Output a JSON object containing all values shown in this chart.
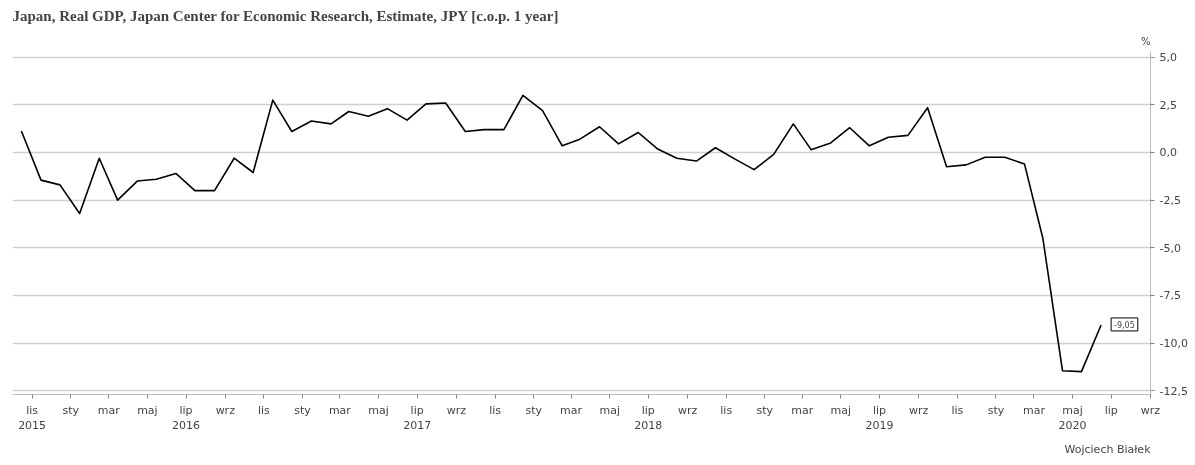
{
  "chart_data": {
    "type": "line",
    "title": "Japan, Real GDP, Japan Center for Economic Research, Estimate, JPY [c.o.p. 1 year]",
    "ylabel": "%",
    "x": [
      "2015-10-15",
      "2015-11-15",
      "2015-12-15",
      "2016-01-15",
      "2016-02-15",
      "2016-03-15",
      "2016-04-15",
      "2016-05-15",
      "2016-06-15",
      "2016-07-15",
      "2016-08-15",
      "2016-09-15",
      "2016-10-15",
      "2016-11-15",
      "2016-12-15",
      "2017-01-15",
      "2017-02-15",
      "2017-03-15",
      "2017-04-15",
      "2017-05-15",
      "2017-06-15",
      "2017-07-15",
      "2017-08-15",
      "2017-09-15",
      "2017-10-15",
      "2017-11-15",
      "2017-12-15",
      "2018-01-15",
      "2018-02-15",
      "2018-03-15",
      "2018-04-15",
      "2018-05-15",
      "2018-06-15",
      "2018-07-15",
      "2018-08-15",
      "2018-09-15",
      "2018-10-15",
      "2018-11-15",
      "2018-12-15",
      "2019-01-15",
      "2019-02-15",
      "2019-03-15",
      "2019-04-15",
      "2019-05-15",
      "2019-06-15",
      "2019-07-15",
      "2019-08-15",
      "2019-09-15",
      "2019-10-15",
      "2019-11-15",
      "2019-12-15",
      "2020-01-15",
      "2020-02-15",
      "2020-03-15",
      "2020-04-15",
      "2020-05-15",
      "2020-06-15"
    ],
    "series": [
      {
        "color": "#000000",
        "values": [
          1.13,
          -1.45,
          -1.7,
          -3.2,
          -0.3,
          -2.5,
          -1.5,
          -1.4,
          -1.1,
          -2.0,
          -2.0,
          -0.3,
          -1.05,
          2.75,
          1.1,
          1.65,
          1.5,
          2.15,
          1.9,
          2.3,
          1.7,
          2.55,
          2.6,
          1.1,
          1.2,
          1.2,
          3.0,
          2.2,
          0.35,
          0.7,
          1.35,
          0.45,
          1.05,
          0.2,
          -0.3,
          -0.45,
          0.25,
          -0.35,
          -0.9,
          -0.1,
          1.5,
          0.15,
          0.5,
          1.3,
          0.35,
          0.8,
          0.9,
          2.35,
          -0.75,
          -0.65,
          -0.25,
          -0.25,
          -0.6,
          -4.5,
          -11.45,
          -11.5,
          -9.05
        ]
      }
    ],
    "ylim": [
      -12.7,
      5.3
    ],
    "yticks": [
      {
        "value": 5,
        "label": "5,0"
      },
      {
        "value": 2.5,
        "label": "2,5"
      },
      {
        "value": 0,
        "label": "0,0"
      },
      {
        "value": -2.5,
        "label": "-2,5"
      },
      {
        "value": -5,
        "label": "-5,0"
      },
      {
        "value": -7.5,
        "label": "-7,5"
      },
      {
        "value": -10,
        "label": "-10,0"
      },
      {
        "value": -12.5,
        "label": "-12,5"
      }
    ],
    "xlim": [
      "2015-10-01",
      "2020-09-01"
    ],
    "xticks": [
      {
        "value": "2015-11-01",
        "label": "lis\n2015"
      },
      {
        "value": "2016-01-01",
        "label": "sty"
      },
      {
        "value": "2016-03-01",
        "label": "mar"
      },
      {
        "value": "2016-05-01",
        "label": "maj"
      },
      {
        "value": "2016-07-01",
        "label": "lip\n2016"
      },
      {
        "value": "2016-09-01",
        "label": "wrz"
      },
      {
        "value": "2016-11-01",
        "label": "lis"
      },
      {
        "value": "2017-01-01",
        "label": "sty"
      },
      {
        "value": "2017-03-01",
        "label": "mar"
      },
      {
        "value": "2017-05-01",
        "label": "maj"
      },
      {
        "value": "2017-07-01",
        "label": "lip\n2017"
      },
      {
        "value": "2017-09-01",
        "label": "wrz"
      },
      {
        "value": "2017-11-01",
        "label": "lis"
      },
      {
        "value": "2018-01-01",
        "label": "sty"
      },
      {
        "value": "2018-03-01",
        "label": "mar"
      },
      {
        "value": "2018-05-01",
        "label": "maj"
      },
      {
        "value": "2018-07-01",
        "label": "lip\n2018"
      },
      {
        "value": "2018-09-01",
        "label": "wrz"
      },
      {
        "value": "2018-11-01",
        "label": "lis"
      },
      {
        "value": "2019-01-01",
        "label": "sty"
      },
      {
        "value": "2019-03-01",
        "label": "mar"
      },
      {
        "value": "2019-05-01",
        "label": "maj"
      },
      {
        "value": "2019-07-01",
        "label": "lip\n2019"
      },
      {
        "value": "2019-09-01",
        "label": "wrz"
      },
      {
        "value": "2019-11-01",
        "label": "lis"
      },
      {
        "value": "2020-01-01",
        "label": "sty"
      },
      {
        "value": "2020-03-01",
        "label": "mar"
      },
      {
        "value": "2020-05-01",
        "label": "maj\n2020"
      },
      {
        "value": "2020-07-01",
        "label": "lip"
      },
      {
        "value": "2020-09-01",
        "label": "wrz"
      }
    ],
    "grid": "y",
    "annotations": [
      {
        "text": "-9,05",
        "x": "2020-06-15",
        "y": -9.05
      },
      "Wojciech Białek"
    ]
  }
}
